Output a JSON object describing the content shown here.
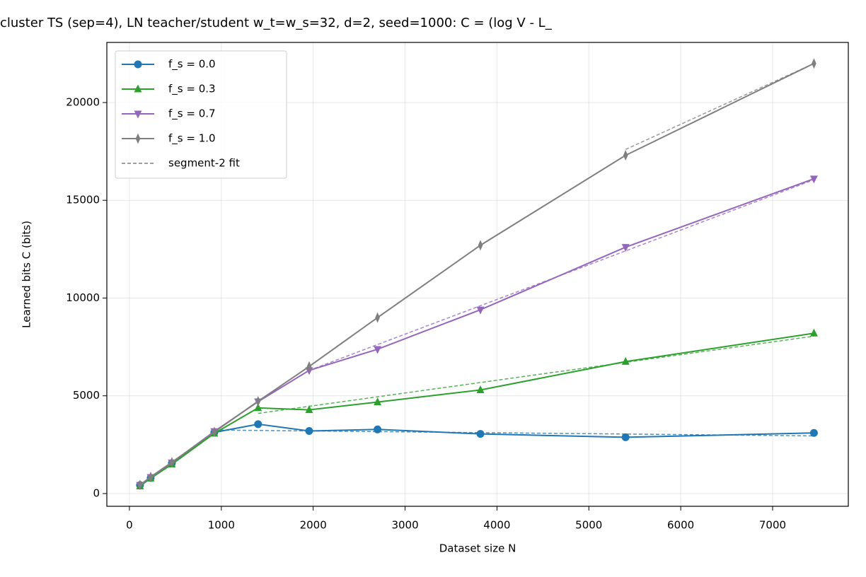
{
  "chart_data": {
    "type": "line",
    "title": "cluster TS (sep=4), LN teacher/student w_t=w_s=32, d=2, seed=1000: C = (log V - L_",
    "xlabel": "Dataset size N",
    "ylabel": "Learned bits C (bits)",
    "x": [
      115,
      231,
      462,
      924,
      1400,
      1956,
      2700,
      3820,
      5400,
      7450
    ],
    "series": [
      {
        "name": "f_s = 0.0",
        "color": "#1f77b4",
        "marker": "circle",
        "values": [
          434,
          800,
          1550,
          3130,
          3550,
          3200,
          3280,
          3050,
          2880,
          3100
        ]
      },
      {
        "name": "f_s = 0.3",
        "color": "#2ca02c",
        "marker": "triangle-up",
        "values": [
          380,
          780,
          1500,
          3080,
          4380,
          4280,
          4680,
          5300,
          6750,
          8200
        ]
      },
      {
        "name": "f_s = 0.7",
        "color": "#9467bd",
        "marker": "triangle-down",
        "values": [
          430,
          830,
          1580,
          3180,
          4700,
          6300,
          7380,
          9400,
          12600,
          16100
        ]
      },
      {
        "name": "f_s = 1.0",
        "color": "#7f7f7f",
        "marker": "diamond",
        "values": [
          440,
          850,
          1600,
          3150,
          4720,
          6500,
          9000,
          12700,
          17300,
          22000
        ]
      }
    ],
    "fit_label": "segment-2 fit",
    "fits": [
      {
        "color": "#1f77b4",
        "x": [
          924,
          7450
        ],
        "values": [
          3250,
          2950
        ]
      },
      {
        "color": "#2ca02c",
        "x": [
          1400,
          7450
        ],
        "values": [
          4100,
          8050
        ]
      },
      {
        "color": "#9467bd",
        "x": [
          1956,
          7450
        ],
        "values": [
          6300,
          16050
        ]
      },
      {
        "color": "#7f7f7f",
        "x": [
          5400,
          7450
        ],
        "values": [
          17600,
          22000
        ]
      }
    ],
    "xlim": [
      -246,
      7824
    ],
    "ylim": [
      -651,
      23074
    ],
    "xticks": [
      0,
      1000,
      2000,
      3000,
      4000,
      5000,
      6000,
      7000
    ],
    "yticks": [
      0,
      5000,
      10000,
      15000,
      20000
    ],
    "grid": true,
    "legend": "upper left"
  }
}
